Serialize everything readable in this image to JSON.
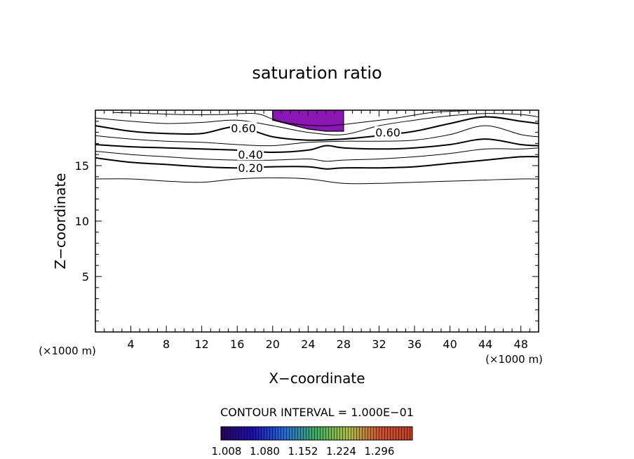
{
  "chart_data": {
    "type": "contour",
    "title": "saturation ratio",
    "xlabel": "X−coordinate",
    "ylabel": "Z−coordinate",
    "x_unit_left": "(×1000 m)",
    "x_unit_right": "(×1000 m)",
    "xlim": [
      0,
      50
    ],
    "ylim": [
      0,
      20
    ],
    "xticks": [
      4,
      8,
      12,
      16,
      20,
      24,
      28,
      32,
      36,
      40,
      44,
      48
    ],
    "yticks": [
      5,
      10,
      15
    ],
    "contour_interval_label": "CONTOUR INTERVAL = 1.000E−01",
    "contour_labels": [
      {
        "text": "0.60",
        "x": 16.7,
        "z": 18.4
      },
      {
        "text": "0.60",
        "x": 33.0,
        "z": 18.0
      },
      {
        "text": "0.40",
        "x": 17.5,
        "z": 16.0
      },
      {
        "text": "0.20",
        "x": 17.5,
        "z": 14.8
      }
    ],
    "contours": [
      {
        "level": 0.1,
        "bold": false,
        "x": [
          0,
          4,
          8,
          12,
          16,
          20,
          24,
          28,
          32,
          36,
          40,
          44,
          48,
          50
        ],
        "z": [
          13.8,
          13.8,
          13.6,
          13.5,
          13.8,
          13.9,
          13.8,
          13.4,
          13.4,
          13.5,
          13.6,
          13.7,
          13.8,
          13.8
        ]
      },
      {
        "level": 0.2,
        "bold": true,
        "x": [
          0,
          4,
          8,
          12,
          16,
          20,
          24,
          26,
          28,
          32,
          36,
          40,
          44,
          48,
          50
        ],
        "z": [
          15.7,
          15.3,
          15.1,
          14.9,
          14.8,
          14.9,
          14.9,
          14.7,
          14.8,
          14.8,
          14.9,
          15.2,
          15.5,
          15.8,
          15.8
        ]
      },
      {
        "level": 0.3,
        "bold": false,
        "x": [
          0,
          4,
          8,
          12,
          16,
          20,
          24,
          26,
          28,
          32,
          36,
          40,
          44,
          48,
          50
        ],
        "z": [
          16.3,
          16.0,
          15.8,
          15.6,
          15.5,
          15.5,
          15.6,
          15.4,
          15.5,
          15.6,
          15.8,
          16.1,
          16.5,
          16.5,
          16.6
        ]
      },
      {
        "level": 0.4,
        "bold": true,
        "x": [
          0,
          4,
          8,
          12,
          16,
          20,
          24,
          26,
          28,
          32,
          36,
          40,
          44,
          48,
          50
        ],
        "z": [
          16.9,
          16.7,
          16.6,
          16.5,
          16.4,
          16.2,
          16.4,
          16.8,
          16.6,
          16.5,
          16.6,
          16.9,
          17.4,
          16.9,
          16.8
        ]
      },
      {
        "level": 0.5,
        "bold": false,
        "x": [
          0,
          4,
          8,
          12,
          16,
          20,
          24,
          28,
          32,
          36,
          40,
          44,
          48,
          50
        ],
        "z": [
          17.7,
          17.4,
          17.2,
          17.1,
          16.9,
          16.8,
          17.1,
          17.2,
          17.2,
          17.3,
          17.8,
          18.6,
          17.8,
          17.6
        ]
      },
      {
        "level": 0.6,
        "bold": true,
        "x": [
          0,
          4,
          8,
          12,
          16,
          20,
          24,
          28,
          32,
          36,
          40,
          44,
          48,
          50
        ],
        "z": [
          18.6,
          18.1,
          17.9,
          17.9,
          18.5,
          17.6,
          17.3,
          17.4,
          17.7,
          18.1,
          18.8,
          19.4,
          19.0,
          18.8
        ]
      },
      {
        "level": 0.7,
        "bold": false,
        "x": [
          0,
          4,
          8,
          12,
          16,
          20,
          24,
          28,
          32,
          36,
          40,
          44,
          48,
          50
        ],
        "z": [
          19.3,
          19.0,
          18.8,
          18.9,
          19.1,
          18.6,
          18.0,
          17.8,
          18.6,
          19.1,
          19.5,
          19.7,
          19.6,
          19.4
        ]
      },
      {
        "level": 0.8,
        "bold": false,
        "x": [
          2,
          6,
          10,
          14,
          18,
          20,
          22,
          26,
          30,
          34,
          38,
          42
        ],
        "z": [
          19.8,
          19.7,
          19.6,
          19.6,
          19.7,
          19.2,
          18.8,
          18.6,
          18.9,
          19.3,
          19.8,
          19.95
        ]
      }
    ],
    "shaded_region": {
      "color": "#8a16b4",
      "x": [
        20,
        28,
        28,
        26,
        24,
        22,
        20
      ],
      "z": [
        20,
        20,
        18.1,
        18.1,
        18.3,
        18.7,
        19.1
      ]
    },
    "colorbar": {
      "ticks": [
        "1.008",
        "1.080",
        "1.152",
        "1.224",
        "1.296"
      ],
      "colors": [
        "#2a0060",
        "#1f0fb0",
        "#1f6cd8",
        "#40b060",
        "#b0c040",
        "#d05030",
        "#c04020"
      ]
    }
  }
}
